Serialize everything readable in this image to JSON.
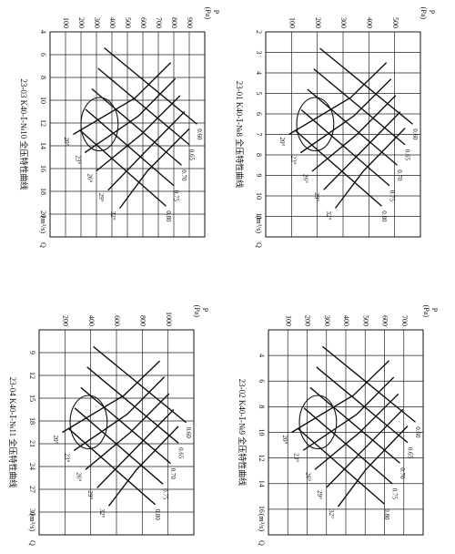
{
  "chart_data": [
    {
      "type": "line",
      "title": "23-03 K40-Ⅰ-№10 全压特性曲线",
      "x_label": "Q",
      "x_unit": "(m³/s)",
      "y_label": "P",
      "y_unit": "(Pa)",
      "xlim": [
        4,
        22
      ],
      "xticks": [
        4,
        6,
        8,
        10,
        12,
        14,
        16,
        18,
        20
      ],
      "ylim": [
        0,
        1000
      ],
      "yticks": [
        100,
        200,
        300,
        400,
        500,
        600,
        700,
        800,
        900
      ],
      "grid": true,
      "series": [
        {
          "name": "20°",
          "color": "#111111",
          "x": [
            6.7,
            9.8,
            13
          ],
          "values": [
            780,
            550,
            150
          ]
        },
        {
          "name": "23°",
          "color": "#111111",
          "x": [
            8.1,
            11.4,
            14.6
          ],
          "values": [
            810,
            570,
            225
          ]
        },
        {
          "name": "26°",
          "color": "#111111",
          "x": [
            9.6,
            13,
            16.2
          ],
          "values": [
            840,
            590,
            300
          ]
        },
        {
          "name": "29°",
          "color": "#111111",
          "x": [
            11,
            14.6,
            17.9
          ],
          "values": [
            870,
            610,
            375
          ]
        },
        {
          "name": "32°",
          "color": "#111111",
          "x": [
            12.5,
            16.2,
            19.5
          ],
          "values": [
            900,
            630,
            450
          ]
        },
        {
          "name": "0.60",
          "color": "#111111",
          "x": [
            5.4,
            12.1
          ],
          "values": [
            350,
            950
          ]
        },
        {
          "name": "0.65",
          "color": "#111111",
          "x": [
            7.2,
            13.9
          ],
          "values": [
            310,
            900
          ]
        },
        {
          "name": "0.70",
          "color": "#111111",
          "x": [
            9,
            15.7
          ],
          "values": [
            270,
            850
          ]
        },
        {
          "name": "0.75",
          "color": "#111111",
          "x": [
            10.8,
            17.5
          ],
          "values": [
            230,
            800
          ]
        },
        {
          "name": "0.80",
          "color": "#111111",
          "x": [
            12.6,
            19.3
          ],
          "values": [
            190,
            750
          ]
        }
      ]
    },
    {
      "type": "line",
      "title": "23-01 K40-Ⅰ-№8 全压特性曲线",
      "x_label": "Q",
      "x_unit": "(m³/s)",
      "y_label": "P",
      "y_unit": "(Pa)",
      "xlim": [
        2,
        12
      ],
      "xticks": [
        2,
        3,
        4,
        5,
        6,
        7,
        8,
        9,
        10,
        11
      ],
      "ylim": [
        0,
        600
      ],
      "yticks": [
        100,
        200,
        300,
        400,
        500
      ],
      "grid": true,
      "series": [
        {
          "name": "20°",
          "color": "#111111",
          "x": [
            3.5,
            5.2,
            7
          ],
          "values": [
            468,
            330,
            90
          ]
        },
        {
          "name": "23°",
          "color": "#111111",
          "x": [
            4.3,
            6.1,
            7.9
          ],
          "values": [
            486,
            342,
            135
          ]
        },
        {
          "name": "26°",
          "color": "#111111",
          "x": [
            5.1,
            7,
            8.8
          ],
          "values": [
            504,
            354,
            180
          ]
        },
        {
          "name": "29°",
          "color": "#111111",
          "x": [
            5.9,
            7.9,
            9.7
          ],
          "values": [
            522,
            366,
            225
          ]
        },
        {
          "name": "32°",
          "color": "#111111",
          "x": [
            6.7,
            8.8,
            10.6
          ],
          "values": [
            540,
            378,
            270
          ]
        },
        {
          "name": "0.60",
          "color": "#111111",
          "x": [
            2.8,
            6.5
          ],
          "values": [
            210,
            570
          ]
        },
        {
          "name": "0.65",
          "color": "#111111",
          "x": [
            3.8,
            7.5
          ],
          "values": [
            186,
            540
          ]
        },
        {
          "name": "0.70",
          "color": "#111111",
          "x": [
            4.8,
            8.5
          ],
          "values": [
            162,
            510
          ]
        },
        {
          "name": "0.75",
          "color": "#111111",
          "x": [
            5.8,
            9.5
          ],
          "values": [
            138,
            480
          ]
        },
        {
          "name": "0.80",
          "color": "#111111",
          "x": [
            6.8,
            10.5
          ],
          "values": [
            114,
            450
          ]
        }
      ]
    },
    {
      "type": "line",
      "title": "23-04 K40-Ⅰ-№11 全压特性曲线",
      "x_label": "Q",
      "x_unit": "(m³/s)",
      "y_label": "P",
      "y_unit": "(Pa)",
      "xlim": [
        6,
        33
      ],
      "xticks": [
        9,
        12,
        15,
        18,
        21,
        24,
        27,
        30
      ],
      "ylim": [
        0,
        1200
      ],
      "yticks": [
        200,
        400,
        600,
        800,
        1000
      ],
      "grid": true,
      "series": [
        {
          "name": "20°",
          "color": "#111111",
          "x": [
            10.1,
            14.6,
            19.5
          ],
          "values": [
            936,
            660,
            180
          ]
        },
        {
          "name": "23°",
          "color": "#111111",
          "x": [
            12.2,
            17.1,
            21.9
          ],
          "values": [
            972,
            684,
            270
          ]
        },
        {
          "name": "26°",
          "color": "#111111",
          "x": [
            14.4,
            19.5,
            24.4
          ],
          "values": [
            1008,
            708,
            360
          ]
        },
        {
          "name": "29°",
          "color": "#111111",
          "x": [
            16.5,
            21.9,
            26.8
          ],
          "values": [
            1044,
            732,
            450
          ]
        },
        {
          "name": "32°",
          "color": "#111111",
          "x": [
            18.7,
            24.4,
            29.2
          ],
          "values": [
            1080,
            756,
            540
          ]
        },
        {
          "name": "0.60",
          "color": "#111111",
          "x": [
            8.2,
            18.2
          ],
          "values": [
            420,
            1140
          ]
        },
        {
          "name": "0.65",
          "color": "#111111",
          "x": [
            10.9,
            20.9
          ],
          "values": [
            372,
            1080
          ]
        },
        {
          "name": "0.70",
          "color": "#111111",
          "x": [
            13.6,
            23.6
          ],
          "values": [
            324,
            1020
          ]
        },
        {
          "name": "0.75",
          "color": "#111111",
          "x": [
            16.3,
            26.3
          ],
          "values": [
            276,
            960
          ]
        },
        {
          "name": "0.80",
          "color": "#111111",
          "x": [
            19,
            29
          ],
          "values": [
            228,
            900
          ]
        }
      ]
    },
    {
      "type": "line",
      "title": "23-02 K40-Ⅰ-№9 全压特性曲线",
      "x_label": "Q",
      "x_unit": "(m³/s)",
      "y_label": "P",
      "y_unit": "(Pa)",
      "xlim": [
        2,
        18
      ],
      "xticks": [
        4,
        6,
        8,
        10,
        12,
        14,
        16
      ],
      "ylim": [
        0,
        800
      ],
      "yticks": [
        100,
        200,
        300,
        400,
        500,
        600,
        700
      ],
      "grid": true,
      "series": [
        {
          "name": "20°",
          "color": "#111111",
          "x": [
            4.4,
            7.1,
            10
          ],
          "values": [
            624,
            440,
            120
          ]
        },
        {
          "name": "23°",
          "color": "#111111",
          "x": [
            5.7,
            8.6,
            11.4
          ],
          "values": [
            648,
            456,
            180
          ]
        },
        {
          "name": "26°",
          "color": "#111111",
          "x": [
            7,
            10,
            12.9
          ],
          "values": [
            672,
            472,
            240
          ]
        },
        {
          "name": "29°",
          "color": "#111111",
          "x": [
            8.2,
            11.4,
            14.3
          ],
          "values": [
            696,
            488,
            300
          ]
        },
        {
          "name": "32°",
          "color": "#111111",
          "x": [
            9.5,
            12.9,
            15.8
          ],
          "values": [
            720,
            504,
            360
          ]
        },
        {
          "name": "0.60",
          "color": "#111111",
          "x": [
            3.3,
            9.2
          ],
          "values": [
            280,
            760
          ]
        },
        {
          "name": "0.65",
          "color": "#111111",
          "x": [
            4.9,
            10.8
          ],
          "values": [
            248,
            720
          ]
        },
        {
          "name": "0.70",
          "color": "#111111",
          "x": [
            6.5,
            12.4
          ],
          "values": [
            216,
            680
          ]
        },
        {
          "name": "0.75",
          "color": "#111111",
          "x": [
            8.1,
            14
          ],
          "values": [
            184,
            640
          ]
        },
        {
          "name": "0.80",
          "color": "#111111",
          "x": [
            9.7,
            15.6
          ],
          "values": [
            152,
            600
          ]
        }
      ]
    }
  ]
}
